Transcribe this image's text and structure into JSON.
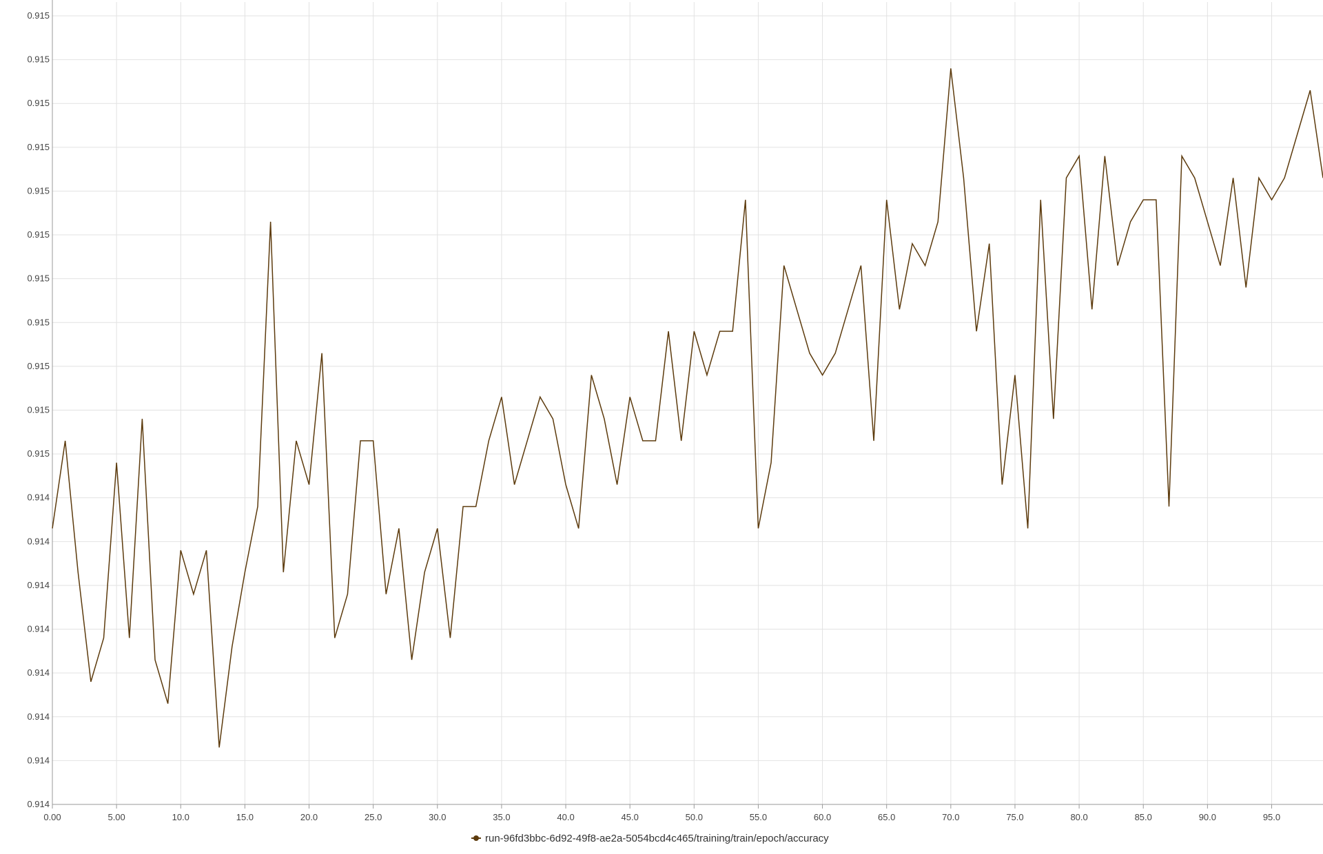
{
  "chart_data": {
    "type": "line",
    "title": "",
    "xlabel": "",
    "ylabel": "",
    "xlim": [
      0,
      99
    ],
    "ylim": [
      0,
      18
    ],
    "grid": true,
    "legend_position": "bottom-center",
    "x_ticks": [
      {
        "value": 0,
        "label": "0.00"
      },
      {
        "value": 5,
        "label": "5.00"
      },
      {
        "value": 10,
        "label": "10.0"
      },
      {
        "value": 15,
        "label": "15.0"
      },
      {
        "value": 20,
        "label": "20.0"
      },
      {
        "value": 25,
        "label": "25.0"
      },
      {
        "value": 30,
        "label": "30.0"
      },
      {
        "value": 35,
        "label": "35.0"
      },
      {
        "value": 40,
        "label": "40.0"
      },
      {
        "value": 45,
        "label": "45.0"
      },
      {
        "value": 50,
        "label": "50.0"
      },
      {
        "value": 55,
        "label": "55.0"
      },
      {
        "value": 60,
        "label": "60.0"
      },
      {
        "value": 65,
        "label": "65.0"
      },
      {
        "value": 70,
        "label": "70.0"
      },
      {
        "value": 75,
        "label": "75.0"
      },
      {
        "value": 80,
        "label": "80.0"
      },
      {
        "value": 85,
        "label": "85.0"
      },
      {
        "value": 90,
        "label": "90.0"
      },
      {
        "value": 95,
        "label": "95.0"
      }
    ],
    "y_ticks": [
      {
        "value": 0,
        "label": "0.914"
      },
      {
        "value": 1,
        "label": "0.914"
      },
      {
        "value": 2,
        "label": "0.914"
      },
      {
        "value": 3,
        "label": "0.914"
      },
      {
        "value": 4,
        "label": "0.914"
      },
      {
        "value": 5,
        "label": "0.914"
      },
      {
        "value": 6,
        "label": "0.914"
      },
      {
        "value": 7,
        "label": "0.914"
      },
      {
        "value": 8,
        "label": "0.915"
      },
      {
        "value": 9,
        "label": "0.915"
      },
      {
        "value": 10,
        "label": "0.915"
      },
      {
        "value": 11,
        "label": "0.915"
      },
      {
        "value": 12,
        "label": "0.915"
      },
      {
        "value": 13,
        "label": "0.915"
      },
      {
        "value": 14,
        "label": "0.915"
      },
      {
        "value": 15,
        "label": "0.915"
      },
      {
        "value": 16,
        "label": "0.915"
      },
      {
        "value": 17,
        "label": "0.915"
      },
      {
        "value": 18,
        "label": "0.915"
      }
    ],
    "series": [
      {
        "name": "run-96fd3bbc-6d92-49f8-ae2a-5054bcd4c465/training/train/epoch/accuracy",
        "color": "#5c3a0c",
        "values": [
          6.3,
          8.3,
          5.3,
          2.8,
          3.8,
          7.8,
          3.8,
          8.8,
          3.3,
          2.3,
          5.8,
          4.8,
          5.8,
          1.3,
          3.6,
          5.3,
          6.8,
          13.3,
          5.3,
          8.3,
          7.3,
          10.3,
          3.8,
          4.8,
          8.3,
          8.3,
          4.8,
          6.3,
          3.3,
          5.3,
          6.3,
          3.8,
          6.8,
          6.8,
          8.3,
          9.3,
          7.3,
          8.3,
          9.3,
          8.8,
          7.3,
          6.3,
          9.8,
          8.8,
          7.3,
          9.3,
          8.3,
          8.3,
          10.8,
          8.3,
          10.8,
          9.8,
          10.8,
          10.8,
          13.8,
          6.3,
          7.8,
          12.3,
          11.3,
          10.3,
          9.8,
          10.3,
          11.3,
          12.3,
          8.3,
          13.8,
          11.3,
          12.8,
          12.3,
          13.3,
          16.8,
          14.3,
          10.8,
          12.8,
          7.3,
          9.8,
          6.3,
          13.8,
          8.8,
          14.3,
          14.8,
          11.3,
          14.8,
          12.3,
          13.3,
          13.8,
          13.8,
          6.8,
          14.8,
          14.3,
          13.3,
          12.3,
          14.3,
          11.8,
          14.3,
          13.8,
          14.3,
          15.3,
          16.3,
          14.3
        ]
      }
    ]
  }
}
